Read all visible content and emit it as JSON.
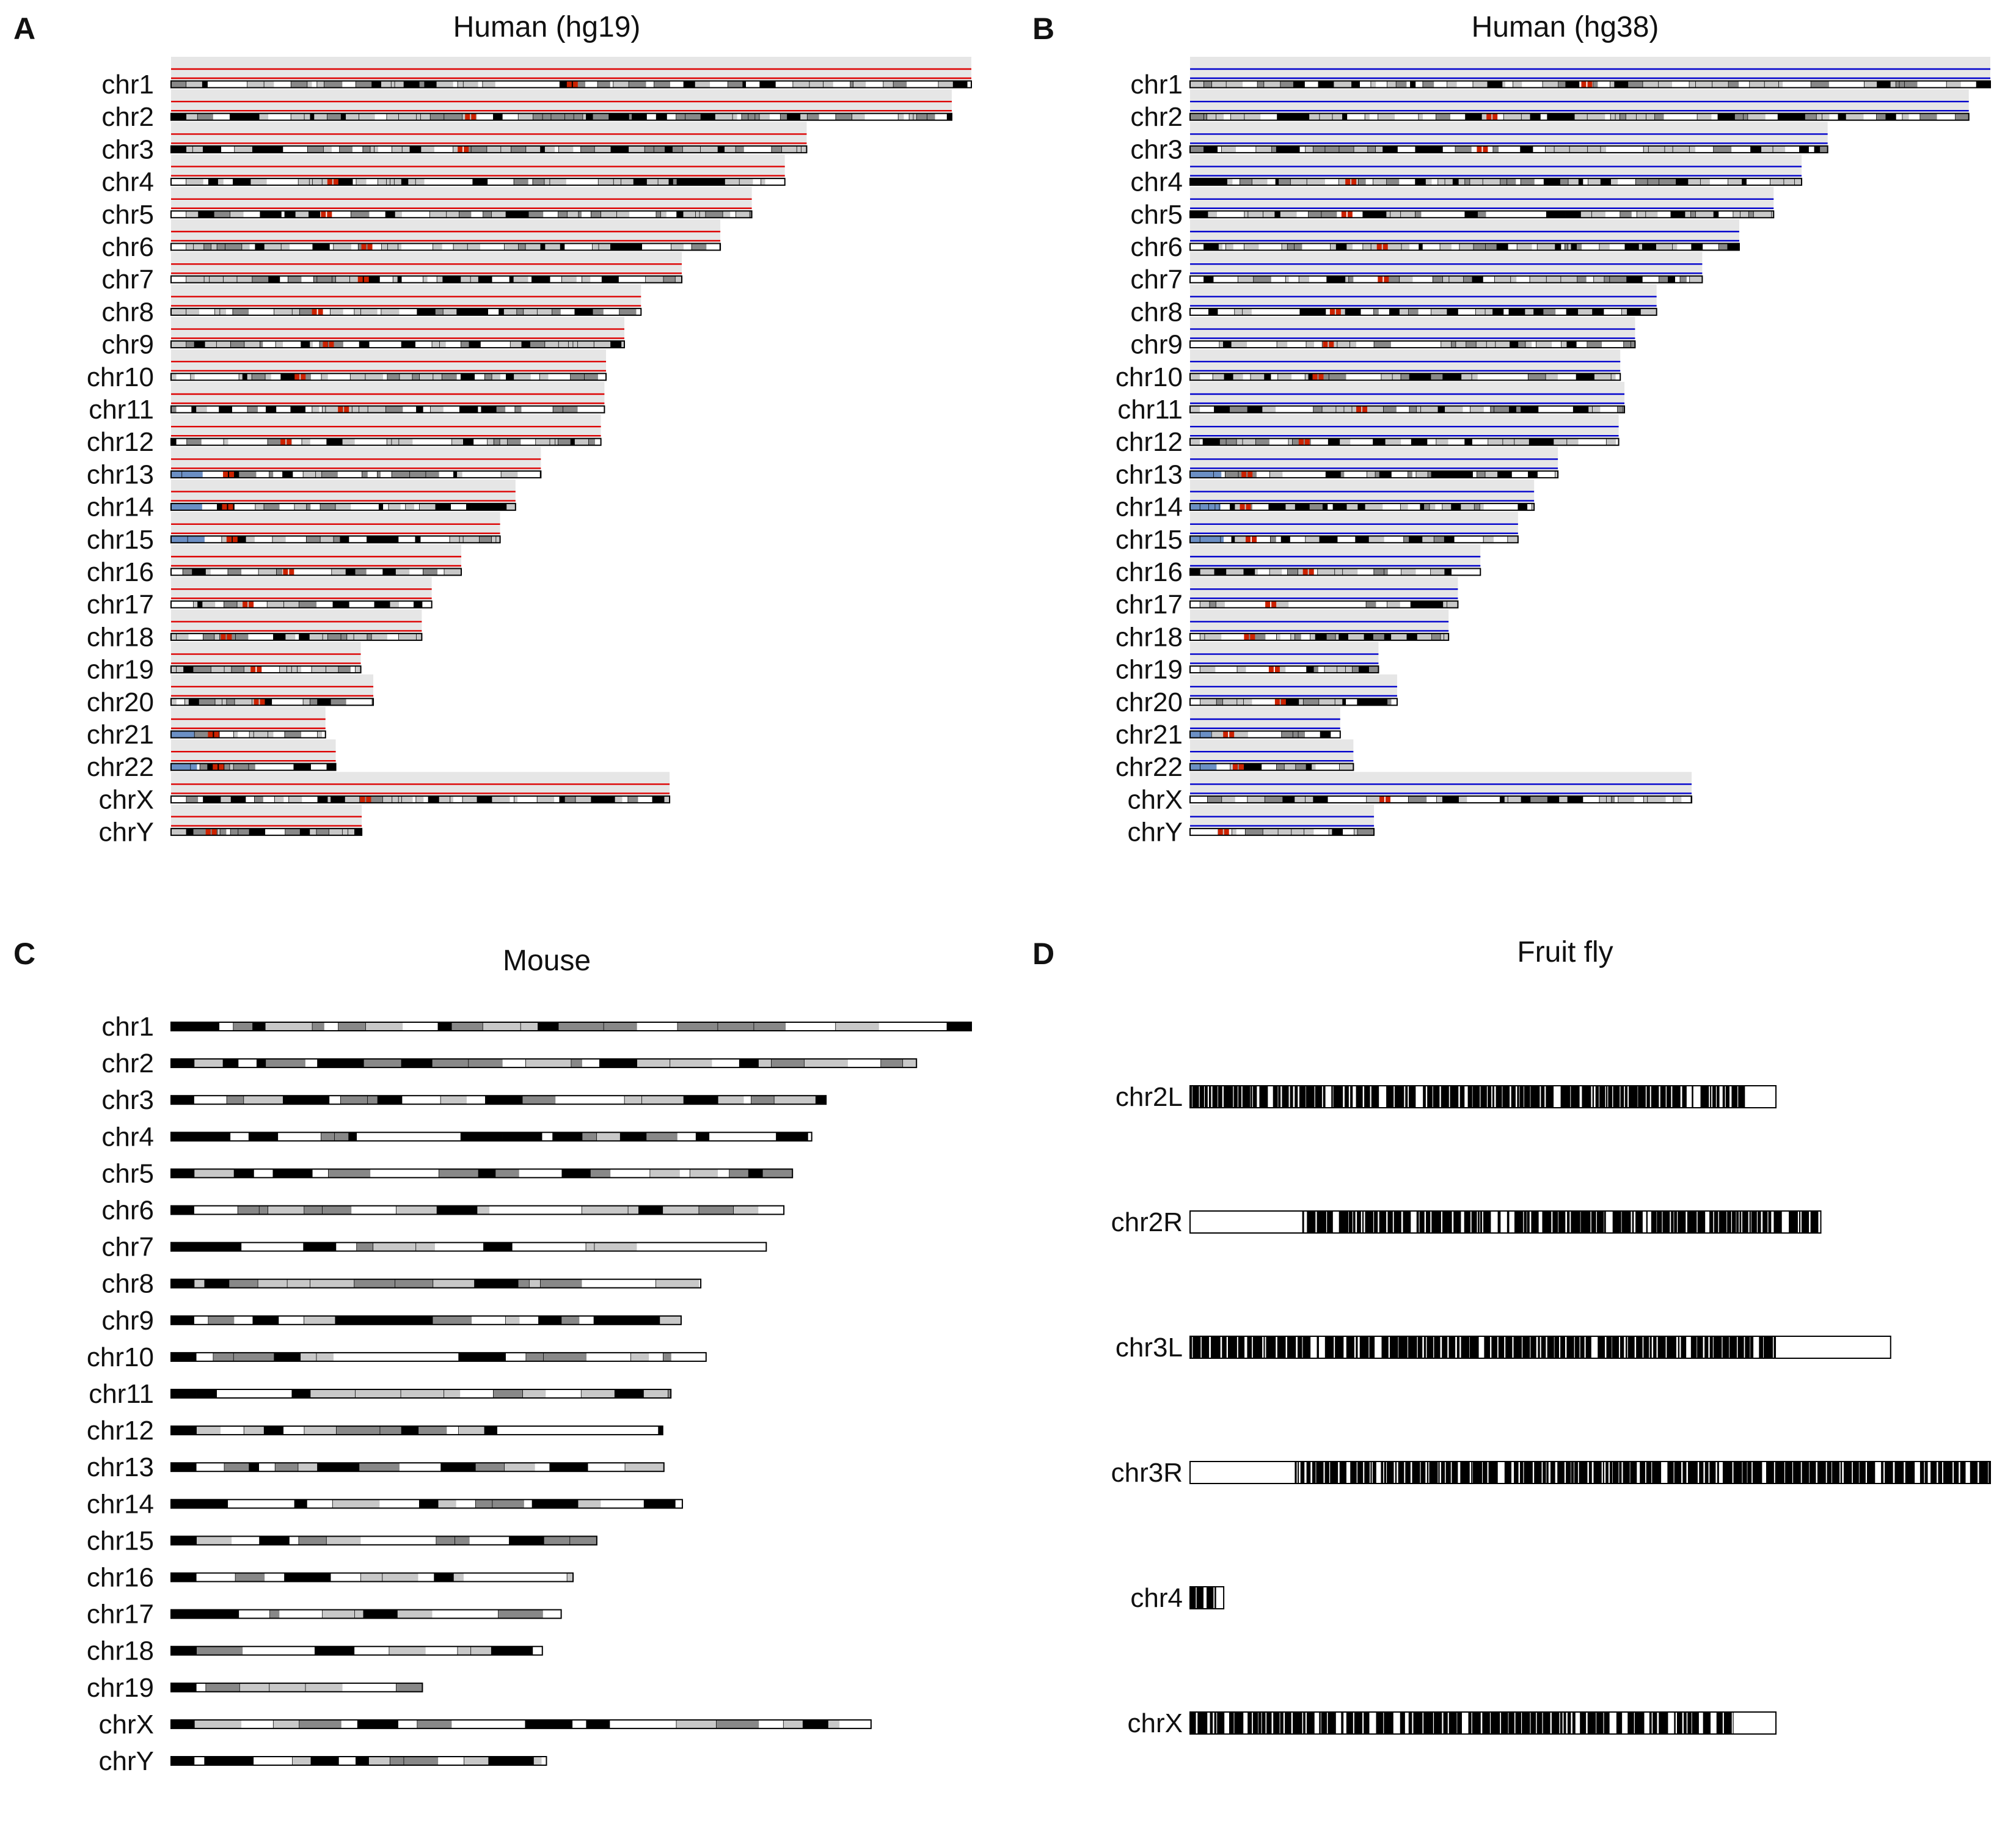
{
  "figure": {
    "panels": [
      {
        "id": "A",
        "letter": "A",
        "title": "Human (hg19)",
        "style": "human",
        "track_color": "#dd0000",
        "shade_color": "#e6e6e6",
        "band_colors": {
          "white": "#ffffff",
          "light": "#c8c8c8",
          "gray": "#888888",
          "dark": "#000000",
          "centromere": "#cc2200",
          "stalk": "#6b8fc4"
        },
        "chromosomes": [
          {
            "name": "chr1",
            "length": 249.3,
            "centromere": 125.0
          },
          {
            "name": "chr2",
            "length": 243.2,
            "centromere": 93.3
          },
          {
            "name": "chr3",
            "length": 198.0,
            "centromere": 91.0
          },
          {
            "name": "chr4",
            "length": 191.2,
            "centromere": 50.4
          },
          {
            "name": "chr5",
            "length": 180.9,
            "centromere": 48.4
          },
          {
            "name": "chr6",
            "length": 171.1,
            "centromere": 61.0
          },
          {
            "name": "chr7",
            "length": 159.1,
            "centromere": 59.9
          },
          {
            "name": "chr8",
            "length": 146.4,
            "centromere": 45.6
          },
          {
            "name": "chr9",
            "length": 141.2,
            "centromere": 49.0
          },
          {
            "name": "chr10",
            "length": 135.5,
            "centromere": 40.2
          },
          {
            "name": "chr11",
            "length": 135.0,
            "centromere": 53.7
          },
          {
            "name": "chr12",
            "length": 133.9,
            "centromere": 35.8
          },
          {
            "name": "chr13",
            "length": 115.2,
            "centromere": 17.9,
            "acrocentric": true
          },
          {
            "name": "chr14",
            "length": 107.3,
            "centromere": 17.6,
            "acrocentric": true
          },
          {
            "name": "chr15",
            "length": 102.5,
            "centromere": 19.0,
            "acrocentric": true
          },
          {
            "name": "chr16",
            "length": 90.4,
            "centromere": 36.6
          },
          {
            "name": "chr17",
            "length": 81.2,
            "centromere": 24.0
          },
          {
            "name": "chr18",
            "length": 78.1,
            "centromere": 17.2
          },
          {
            "name": "chr19",
            "length": 59.1,
            "centromere": 26.5
          },
          {
            "name": "chr20",
            "length": 63.0,
            "centromere": 27.5
          },
          {
            "name": "chr21",
            "length": 48.1,
            "centromere": 13.2,
            "acrocentric": true
          },
          {
            "name": "chr22",
            "length": 51.3,
            "centromere": 14.7,
            "acrocentric": true
          },
          {
            "name": "chrX",
            "length": 155.3,
            "centromere": 60.6
          },
          {
            "name": "chrY",
            "length": 59.4,
            "centromere": 12.5
          }
        ]
      },
      {
        "id": "B",
        "letter": "B",
        "title": "Human (hg38)",
        "style": "human",
        "track_color": "#0000cc",
        "shade_color": "#e6e6e6",
        "band_colors": {
          "white": "#ffffff",
          "light": "#c8c8c8",
          "gray": "#888888",
          "dark": "#000000",
          "centromere": "#cc2200",
          "stalk": "#6b8fc4"
        },
        "chromosomes": [
          {
            "name": "chr1",
            "length": 248.9,
            "centromere": 123.4
          },
          {
            "name": "chr2",
            "length": 242.2,
            "centromere": 93.9
          },
          {
            "name": "chr3",
            "length": 198.3,
            "centromere": 90.9
          },
          {
            "name": "chr4",
            "length": 190.2,
            "centromere": 50.0
          },
          {
            "name": "chr5",
            "length": 181.5,
            "centromere": 48.8
          },
          {
            "name": "chr6",
            "length": 170.8,
            "centromere": 59.8
          },
          {
            "name": "chr7",
            "length": 159.3,
            "centromere": 60.1
          },
          {
            "name": "chr8",
            "length": 145.1,
            "centromere": 45.2
          },
          {
            "name": "chr9",
            "length": 138.4,
            "centromere": 43.0
          },
          {
            "name": "chr10",
            "length": 133.8,
            "centromere": 39.8
          },
          {
            "name": "chr11",
            "length": 135.1,
            "centromere": 53.4
          },
          {
            "name": "chr12",
            "length": 133.3,
            "centromere": 35.5
          },
          {
            "name": "chr13",
            "length": 114.4,
            "centromere": 17.7,
            "acrocentric": true
          },
          {
            "name": "chr14",
            "length": 107.0,
            "centromere": 17.2,
            "acrocentric": true
          },
          {
            "name": "chr15",
            "length": 102.0,
            "centromere": 19.0,
            "acrocentric": true
          },
          {
            "name": "chr16",
            "length": 90.3,
            "centromere": 36.8
          },
          {
            "name": "chr17",
            "length": 83.3,
            "centromere": 25.1
          },
          {
            "name": "chr18",
            "length": 80.4,
            "centromere": 18.5
          },
          {
            "name": "chr19",
            "length": 58.6,
            "centromere": 26.2
          },
          {
            "name": "chr20",
            "length": 64.4,
            "centromere": 28.1
          },
          {
            "name": "chr21",
            "length": 46.7,
            "centromere": 12.0,
            "acrocentric": true
          },
          {
            "name": "chr22",
            "length": 50.8,
            "centromere": 15.0,
            "acrocentric": true
          },
          {
            "name": "chrX",
            "length": 156.0,
            "centromere": 60.6
          },
          {
            "name": "chrY",
            "length": 57.2,
            "centromere": 10.4
          }
        ]
      },
      {
        "id": "C",
        "letter": "C",
        "title": "Mouse",
        "style": "mouse",
        "band_colors": {
          "white": "#ffffff",
          "light": "#c8c8c8",
          "gray": "#888888",
          "dark": "#000000"
        },
        "chromosomes": [
          {
            "name": "chr1",
            "length": 195.5
          },
          {
            "name": "chr2",
            "length": 182.1
          },
          {
            "name": "chr3",
            "length": 160.0
          },
          {
            "name": "chr4",
            "length": 156.5
          },
          {
            "name": "chr5",
            "length": 151.8
          },
          {
            "name": "chr6",
            "length": 149.7
          },
          {
            "name": "chr7",
            "length": 145.4
          },
          {
            "name": "chr8",
            "length": 129.4
          },
          {
            "name": "chr9",
            "length": 124.6
          },
          {
            "name": "chr10",
            "length": 130.7
          },
          {
            "name": "chr11",
            "length": 122.1
          },
          {
            "name": "chr12",
            "length": 120.1
          },
          {
            "name": "chr13",
            "length": 120.4
          },
          {
            "name": "chr14",
            "length": 124.9
          },
          {
            "name": "chr15",
            "length": 104.0
          },
          {
            "name": "chr16",
            "length": 98.2
          },
          {
            "name": "chr17",
            "length": 95.3
          },
          {
            "name": "chr18",
            "length": 90.7
          },
          {
            "name": "chr19",
            "length": 61.4
          },
          {
            "name": "chrX",
            "length": 171.0
          },
          {
            "name": "chrY",
            "length": 91.7
          }
        ]
      },
      {
        "id": "D",
        "letter": "D",
        "title": "Fruit fly",
        "style": "fly",
        "band_colors": {
          "white": "#ffffff",
          "dark": "#000000"
        },
        "chromosomes": [
          {
            "name": "chr2L",
            "length": 23.5,
            "dense_start": 0.0,
            "dense_end": 22.4
          },
          {
            "name": "chr2R",
            "length": 25.3,
            "dense_start": 4.5,
            "dense_end": 25.2
          },
          {
            "name": "chr3L",
            "length": 28.1,
            "dense_start": 0.0,
            "dense_end": 23.5
          },
          {
            "name": "chr3R",
            "length": 32.1,
            "dense_start": 4.2,
            "dense_end": 32.1
          },
          {
            "name": "chr4",
            "length": 1.35,
            "dense_start": 0.0,
            "dense_end": 1.1
          },
          {
            "name": "chrX",
            "length": 23.5,
            "dense_start": 0.0,
            "dense_end": 21.8
          }
        ]
      }
    ]
  }
}
